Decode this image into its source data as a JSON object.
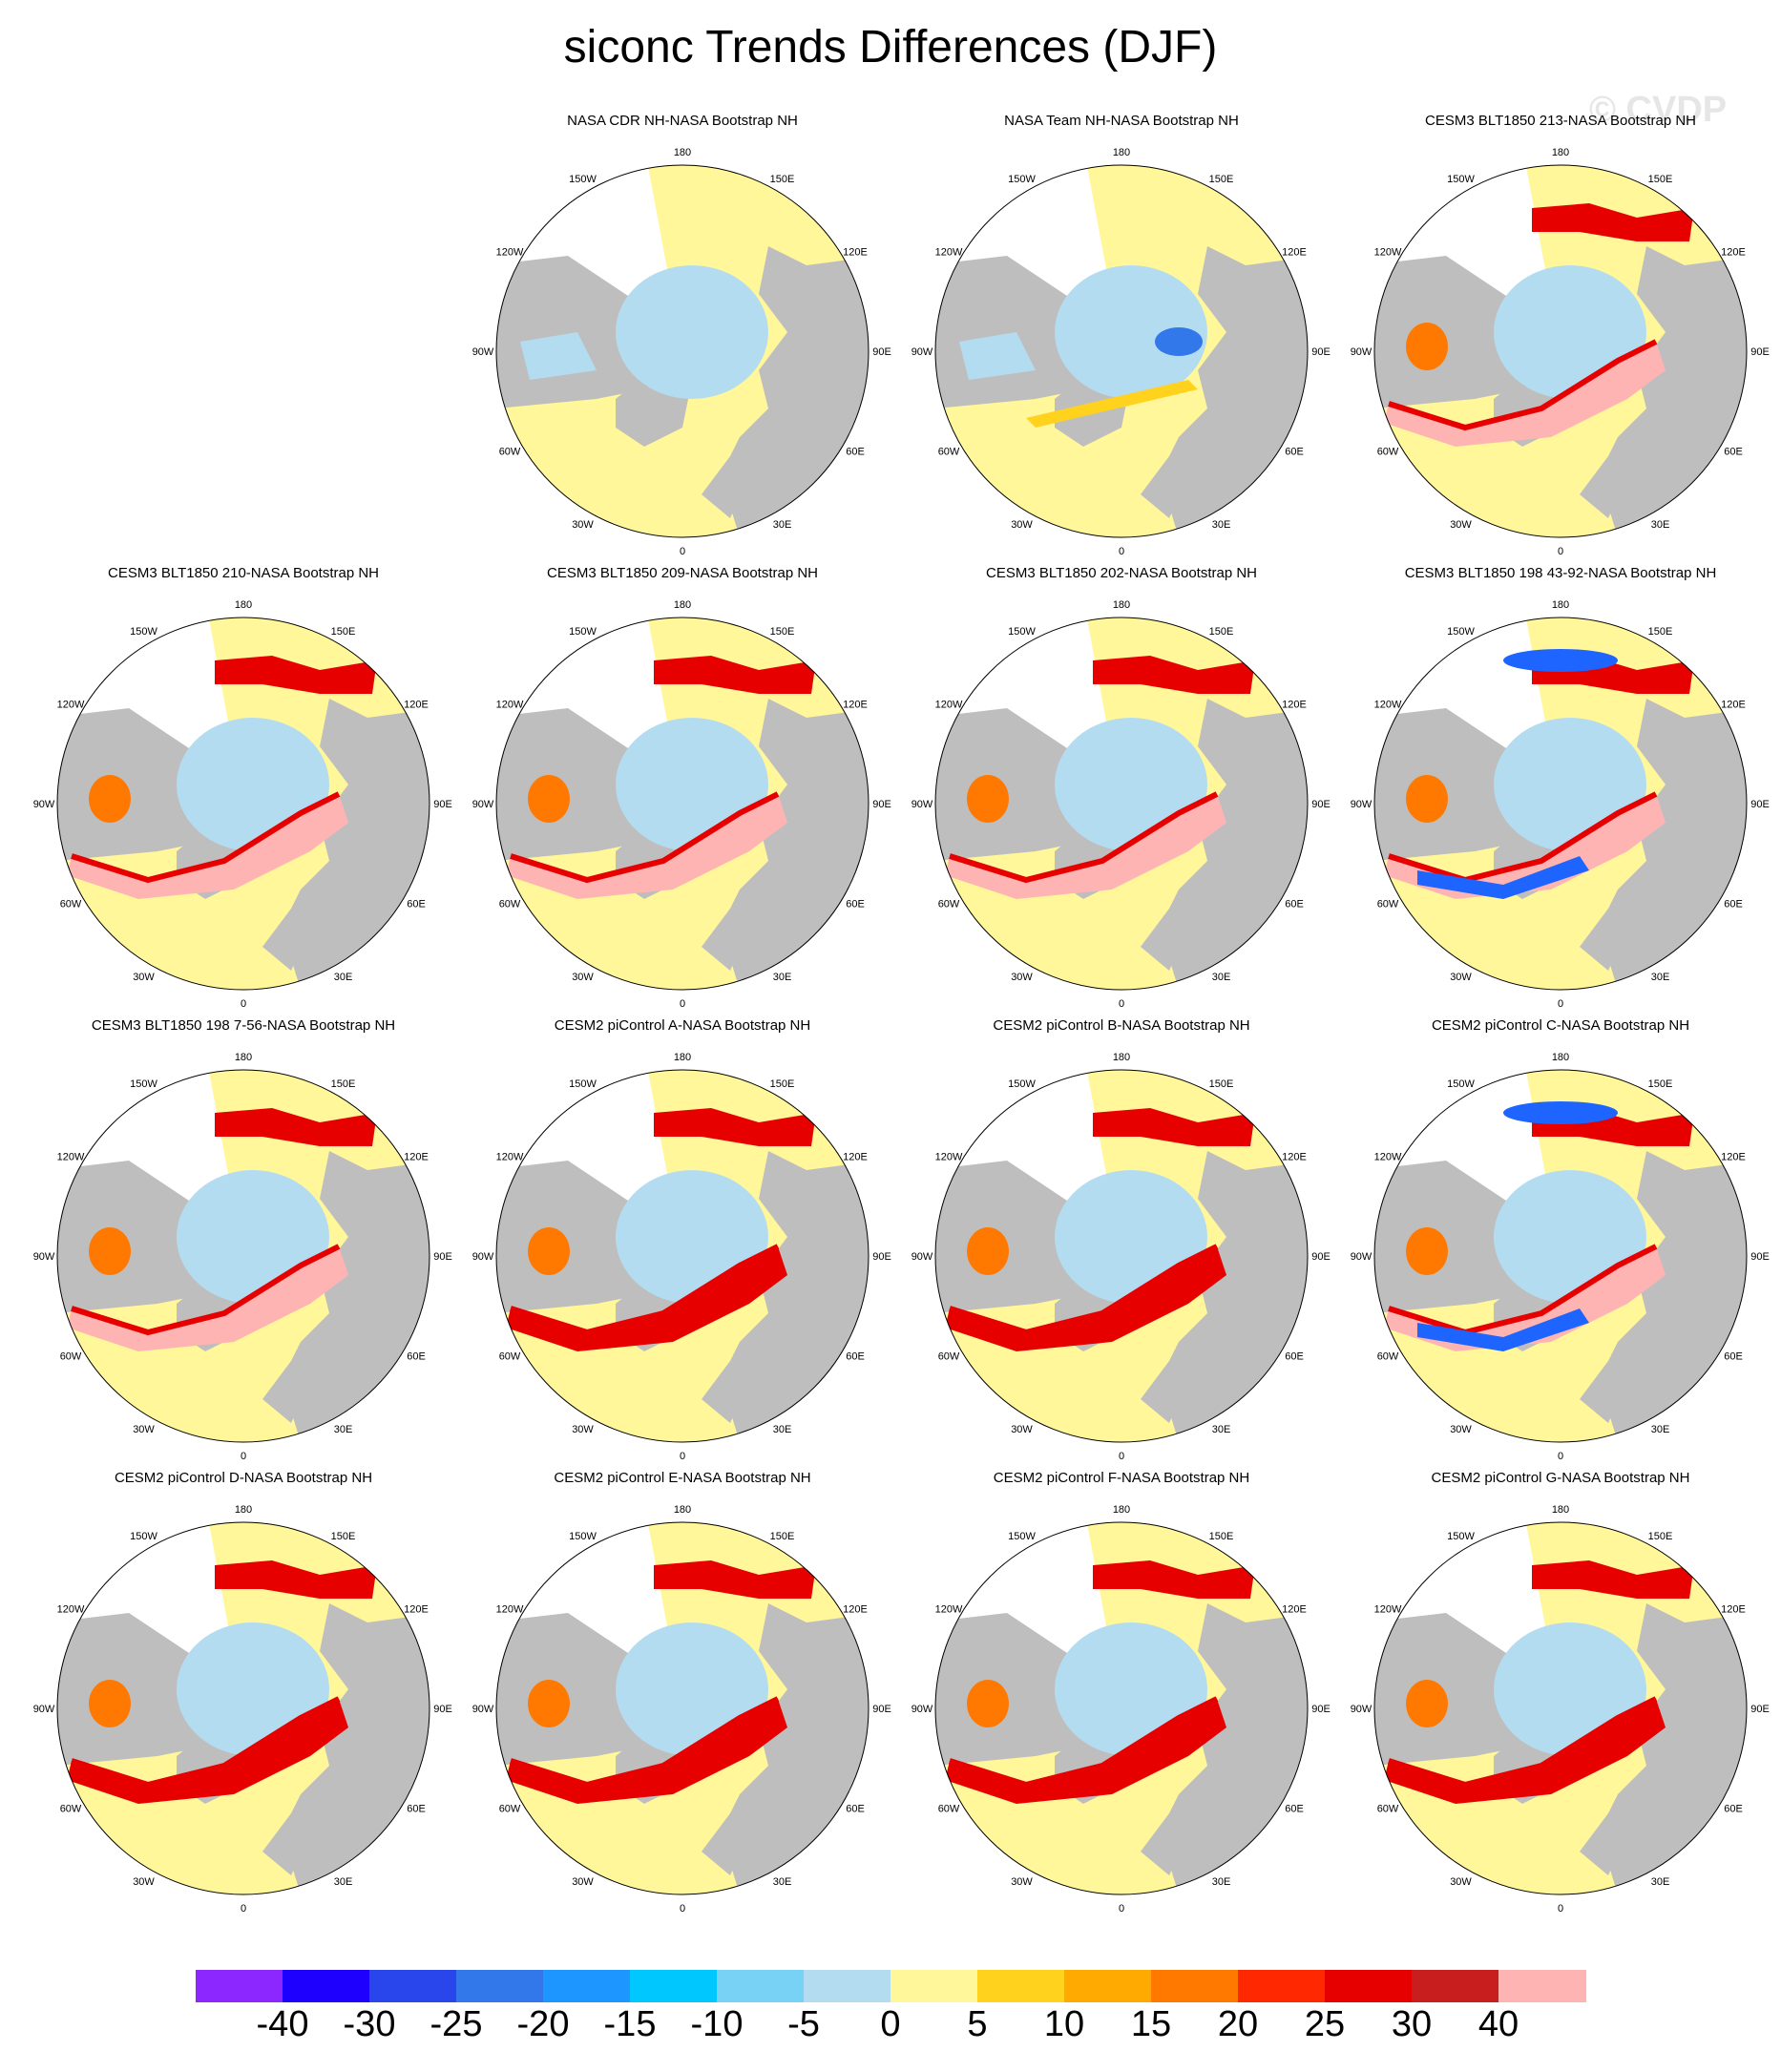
{
  "title": "siconc Trends Differences (DJF)",
  "watermark": "© CVDP",
  "lon_labels": [
    "180",
    "150E",
    "120E",
    "90E",
    "60E",
    "30E",
    "0",
    "30W",
    "60W",
    "90W",
    "120W",
    "150W"
  ],
  "colors": {
    "land": "#bebebe",
    "ocean_zero": "#fff79a",
    "ice_neg": "#b4dcf0",
    "pos_small": "#ffd21e",
    "pos_mid": "#ff7800",
    "pos_high": "#e60000",
    "pos_max": "#ffb4b4",
    "neg_strong": "#1e64ff"
  },
  "panels": [
    {
      "title": "NASA CDR NH-NASA Bootstrap NH",
      "pattern": "obs1"
    },
    {
      "title": "NASA Team NH-NASA Bootstrap NH",
      "pattern": "obs2"
    },
    {
      "title": "CESM3 BLT1850 213-NASA Bootstrap NH",
      "pattern": "model"
    },
    {
      "title": "CESM3 BLT1850 210-NASA Bootstrap NH",
      "pattern": "model"
    },
    {
      "title": "CESM3 BLT1850 209-NASA Bootstrap NH",
      "pattern": "model"
    },
    {
      "title": "CESM3 BLT1850 202-NASA Bootstrap NH",
      "pattern": "model"
    },
    {
      "title": "CESM3 BLT1850 198 43-92-NASA Bootstrap NH",
      "pattern": "modelneg"
    },
    {
      "title": "CESM3 BLT1850 198 7-56-NASA Bootstrap NH",
      "pattern": "model"
    },
    {
      "title": "CESM2 piControl A-NASA Bootstrap NH",
      "pattern": "model2"
    },
    {
      "title": "CESM2 piControl B-NASA Bootstrap NH",
      "pattern": "model2"
    },
    {
      "title": "CESM2 piControl C-NASA Bootstrap NH",
      "pattern": "modelneg"
    },
    {
      "title": "CESM2 piControl D-NASA Bootstrap NH",
      "pattern": "model2"
    },
    {
      "title": "CESM2 piControl E-NASA Bootstrap NH",
      "pattern": "model2"
    },
    {
      "title": "CESM2 piControl F-NASA Bootstrap NH",
      "pattern": "model2"
    },
    {
      "title": "CESM2 piControl G-NASA Bootstrap NH",
      "pattern": "model2"
    }
  ],
  "colorbar": {
    "colors": [
      "#8c28ff",
      "#1e00ff",
      "#2846eb",
      "#3278eb",
      "#1e96ff",
      "#00c8ff",
      "#78d2f5",
      "#b4dcf0",
      "#fff79a",
      "#ffd21e",
      "#ffaa00",
      "#ff7800",
      "#ff2800",
      "#e60000",
      "#c81e1e",
      "#ffb4b4"
    ],
    "labels": [
      "-40",
      "-30",
      "-25",
      "-20",
      "-15",
      "-10",
      "-5",
      "0",
      "5",
      "10",
      "15",
      "20",
      "25",
      "30",
      "40"
    ]
  }
}
